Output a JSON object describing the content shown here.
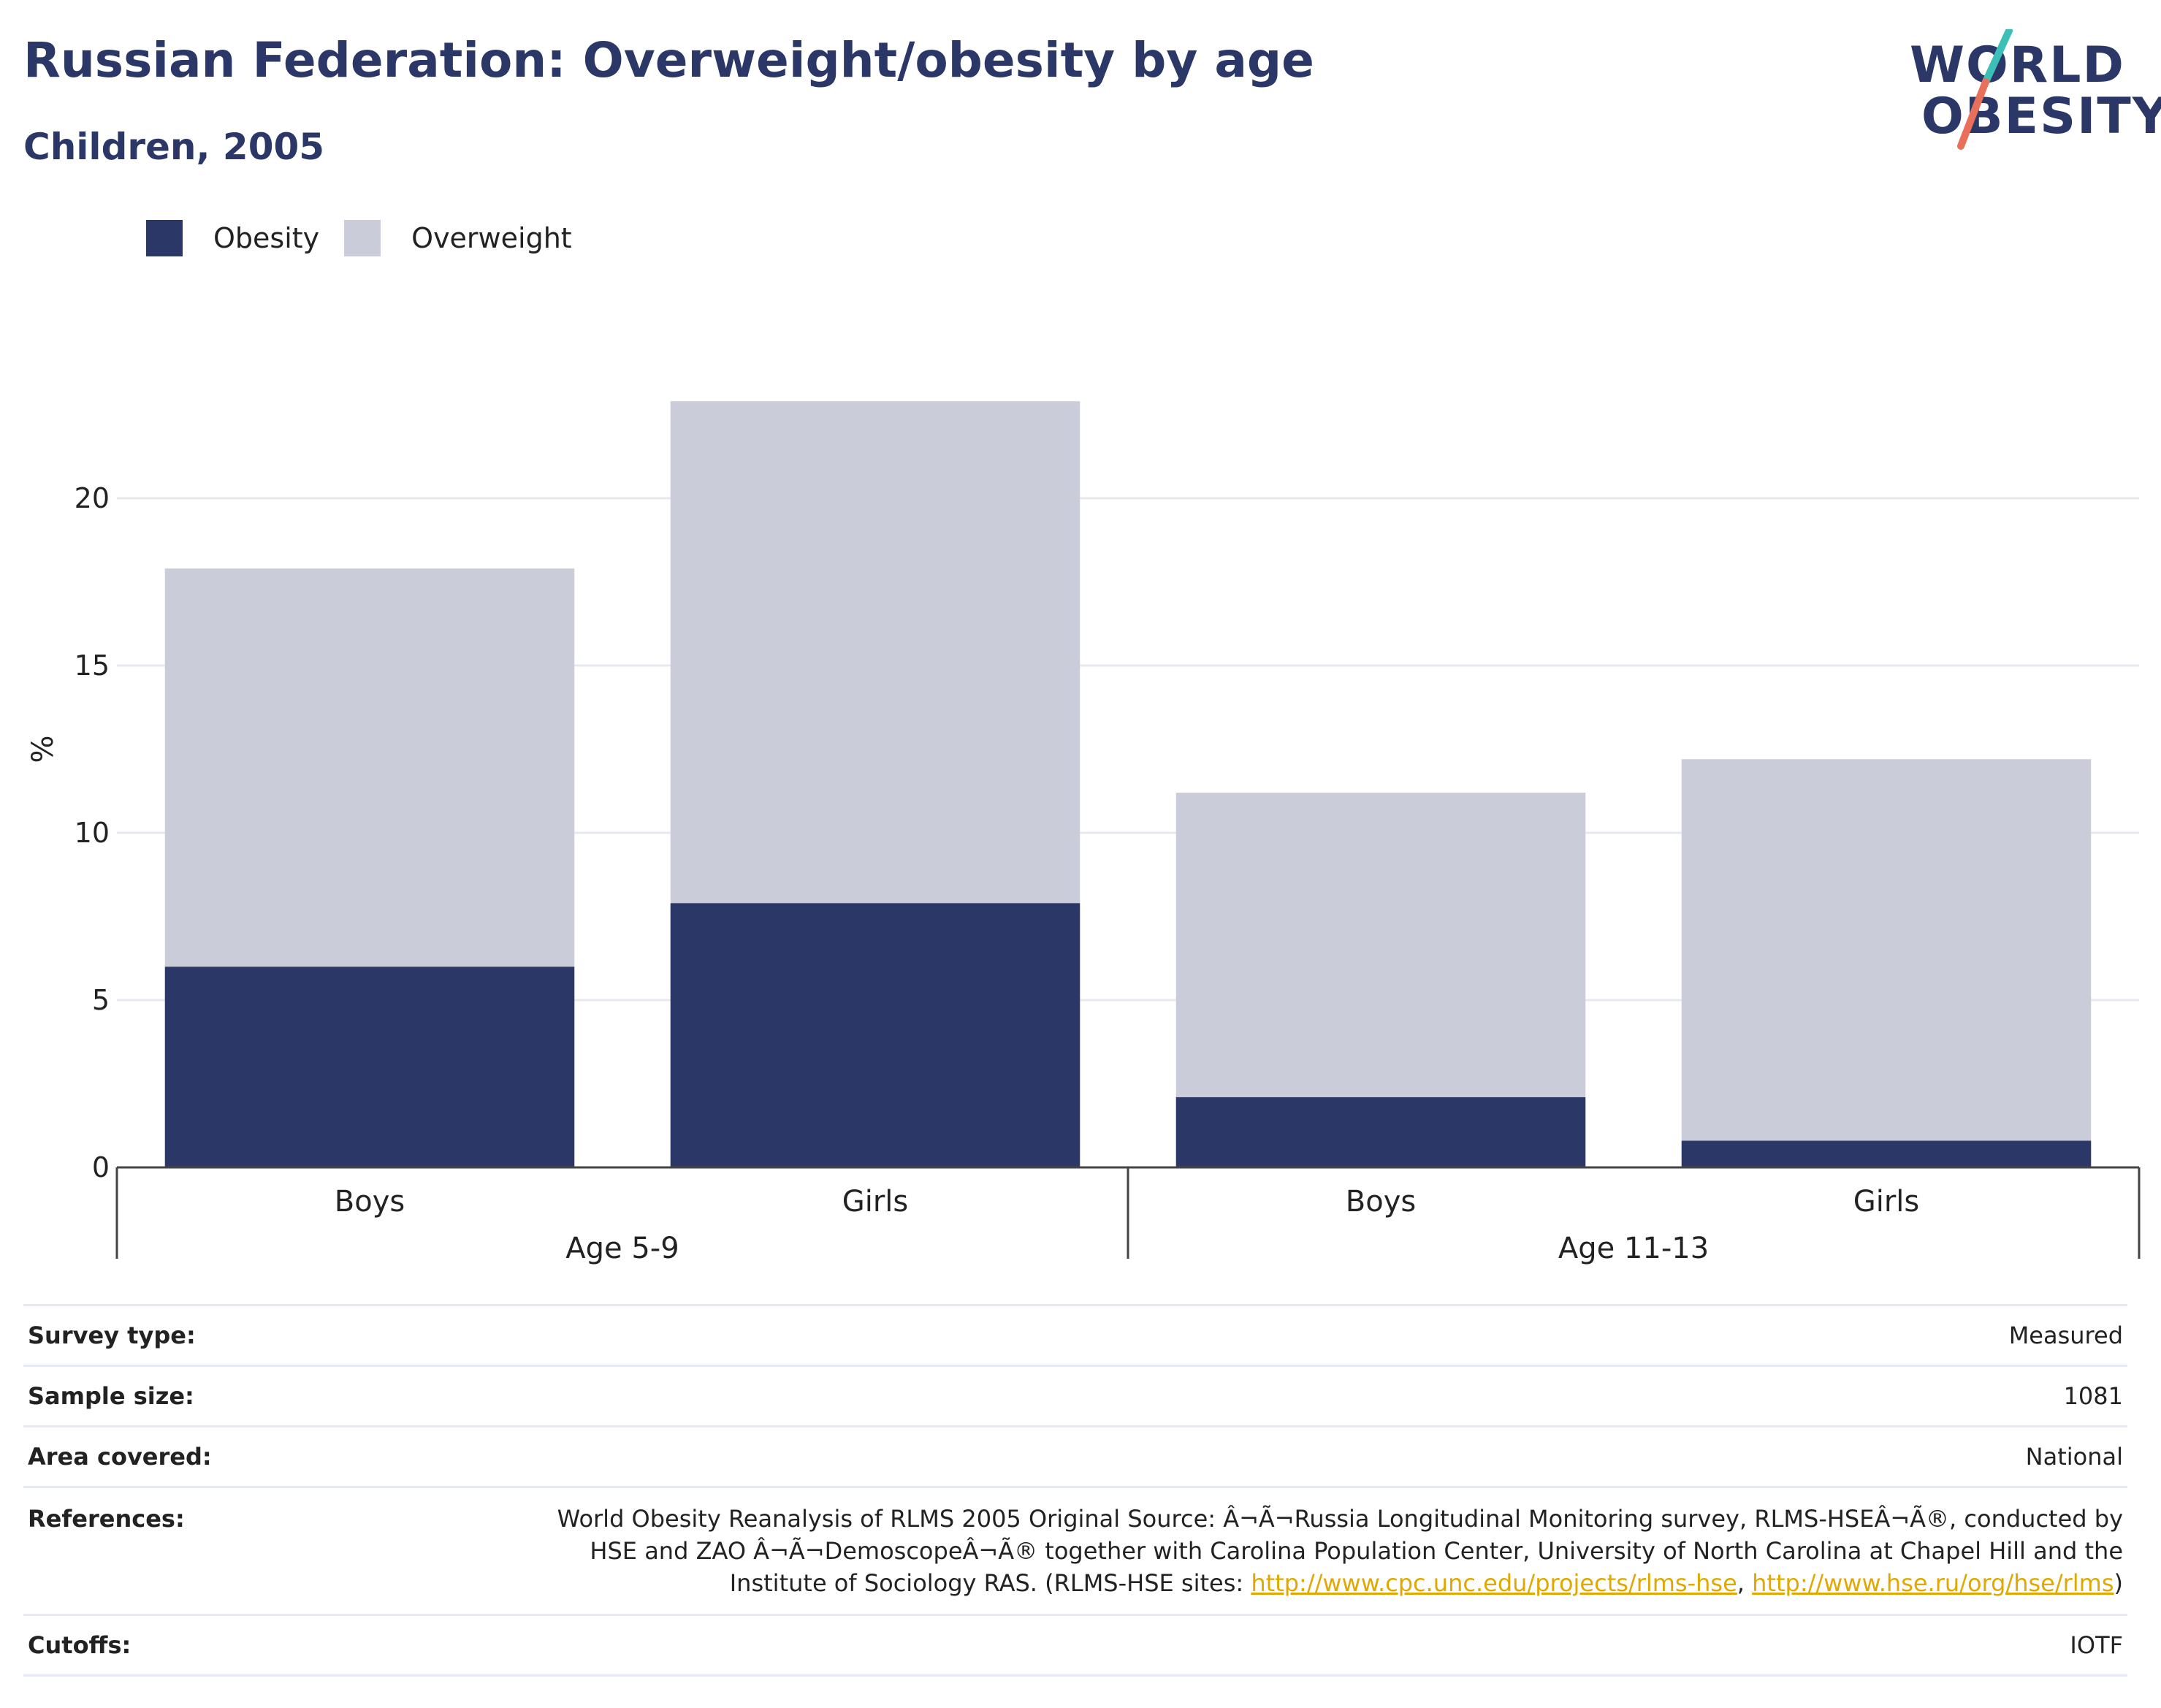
{
  "header": {
    "title": "Russian Federation: Overweight/obesity by age",
    "subtitle": "Children, 2005"
  },
  "logo": {
    "line1": "WORLD",
    "line2": "OBESITY",
    "colors": {
      "text": "#2b3766",
      "slash_top": "#3bbfb6",
      "slash_bottom": "#e8705a"
    }
  },
  "legend": [
    {
      "label": "Obesity",
      "color": "#2b3766"
    },
    {
      "label": "Overweight",
      "color": "#cacdd9"
    }
  ],
  "chart_data": {
    "type": "bar",
    "stacked": true,
    "ylabel": "%",
    "ylim": [
      0,
      25
    ],
    "yticks": [
      0,
      5,
      10,
      15,
      20
    ],
    "grid": true,
    "categories": [
      "Boys",
      "Girls",
      "Boys",
      "Girls"
    ],
    "groups": [
      {
        "label": "Age 5-9",
        "categories": [
          0,
          1
        ]
      },
      {
        "label": "Age 11-13",
        "categories": [
          2,
          3
        ]
      }
    ],
    "series": [
      {
        "name": "Obesity",
        "color": "#2b3766",
        "values": [
          6.0,
          7.9,
          2.1,
          0.8
        ]
      },
      {
        "name": "Overweight",
        "color": "#cacdd9",
        "values": [
          11.9,
          15.0,
          9.1,
          11.4
        ]
      }
    ],
    "totals": [
      17.9,
      22.9,
      11.2,
      12.2
    ]
  },
  "info": {
    "survey_type": {
      "label": "Survey type:",
      "value": "Measured"
    },
    "sample_size": {
      "label": "Sample size:",
      "value": "1081"
    },
    "area_covered": {
      "label": "Area covered:",
      "value": "National"
    },
    "references": {
      "label": "References:",
      "text_line1": "World Obesity Reanalysis of RLMS 2005 Original Source: Â¬Ã¬Russia Longitudinal Monitoring survey, RLMS-HSEÂ¬Ã®, conducted by",
      "text_line2": "HSE and ZAO Â¬Ã¬DemoscopeÂ¬Ã® together with Carolina Population Center, University of North Carolina at Chapel Hill and the",
      "text_line3_start": "Institute of Sociology RAS. (RLMS-HSE sites: ",
      "link1": "http://www.cpc.unc.edu/projects/rlms-hse",
      "separator": ", ",
      "link2": "http://www.hse.ru/org/hse/rlms",
      "text_line3_end": ")"
    },
    "cutoffs": {
      "label": "Cutoffs:",
      "value": "IOTF"
    }
  }
}
